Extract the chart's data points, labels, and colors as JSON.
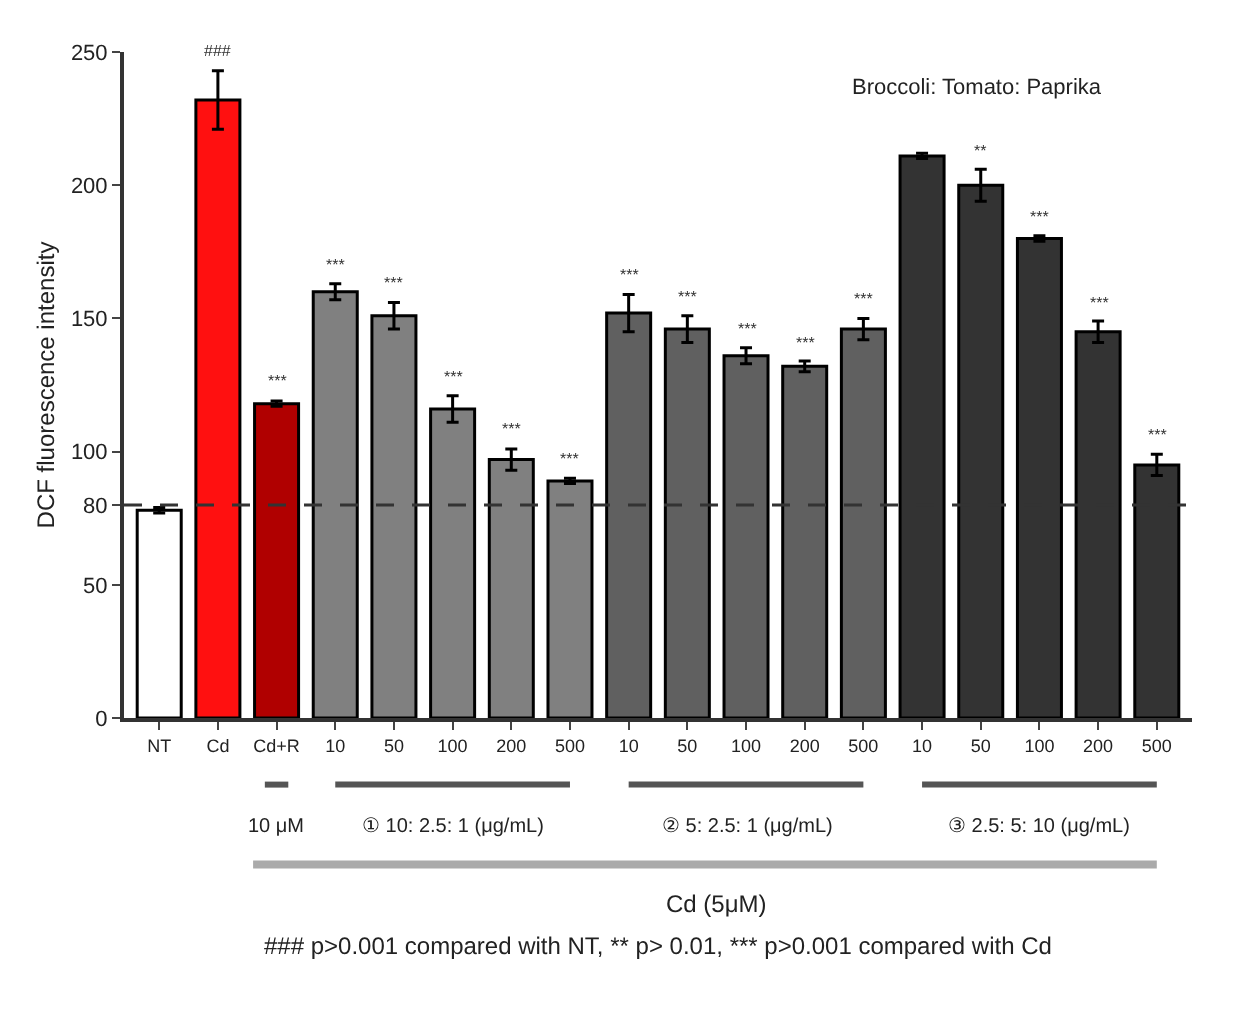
{
  "chart_data": {
    "type": "bar",
    "title": "Broccoli: Tomato: Paprika",
    "ylabel": "DCF fluorescence intensity",
    "categories": [
      "NT",
      "Cd",
      "Cd+R",
      "10",
      "50",
      "100",
      "200",
      "500",
      "10",
      "50",
      "100",
      "200",
      "500",
      "10",
      "50",
      "100",
      "200",
      "500"
    ],
    "values": [
      78,
      232,
      118,
      160,
      151,
      116,
      97,
      89,
      152,
      146,
      136,
      132,
      146,
      211,
      200,
      180,
      145,
      95
    ],
    "errors": [
      1,
      11,
      1,
      3,
      5,
      5,
      4,
      1,
      7,
      5,
      3,
      2,
      4,
      1,
      6,
      1,
      4,
      4
    ],
    "colors": [
      "#ffffff",
      "#ff1010",
      "#b00000",
      "#808080",
      "#808080",
      "#808080",
      "#808080",
      "#808080",
      "#606060",
      "#606060",
      "#606060",
      "#606060",
      "#606060",
      "#333333",
      "#333333",
      "#333333",
      "#333333",
      "#333333"
    ],
    "value_labels": [
      null,
      "###",
      "***",
      "***",
      "***",
      "***",
      "***",
      "***",
      "***",
      "***",
      "***",
      "***",
      "***",
      null,
      "**",
      "***",
      "***",
      "***"
    ],
    "ylim": [
      0,
      250
    ],
    "yticks": [
      0,
      50,
      80,
      100,
      150,
      200,
      250
    ],
    "ref_lines": [
      {
        "axis": "y",
        "value": 80,
        "line_style": "dashed",
        "color": "#333333"
      }
    ],
    "annotations": [
      "10 μM",
      "① 10: 2.5: 1 (μg/mL)",
      "② 5: 2.5: 1 (μg/mL)",
      "③ 2.5: 5: 10 (μg/mL)",
      "Cd (5μM)",
      "### p>0.001 compared with NT, ** p> 0.01, *** p>0.001 compared with Cd"
    ],
    "grid": false,
    "legend": false
  }
}
